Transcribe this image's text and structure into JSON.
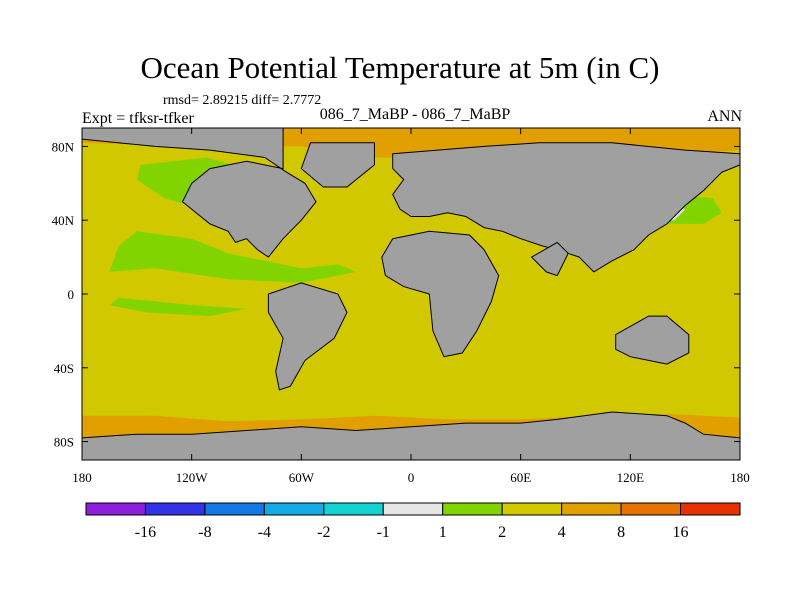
{
  "title": "Ocean Potential Temperature at 5m (in C)",
  "stats": "rmsd= 2.89215 diff= 2.7772",
  "left_label": "Expt = tfksr-tfker",
  "center_label": "086_7_MaBP - 086_7_MaBP",
  "right_label": "ANN",
  "map": {
    "lon_range": [
      -180,
      180
    ],
    "lat_range": [
      -90,
      90
    ],
    "lon_ticks": [
      {
        "value": -180,
        "label": "180"
      },
      {
        "value": -120,
        "label": "120W"
      },
      {
        "value": -60,
        "label": "60W"
      },
      {
        "value": 0,
        "label": "0"
      },
      {
        "value": 60,
        "label": "60E"
      },
      {
        "value": 120,
        "label": "120E"
      },
      {
        "value": 180,
        "label": "180"
      }
    ],
    "lat_ticks": [
      {
        "value": 80,
        "label": "80N"
      },
      {
        "value": 40,
        "label": "40N"
      },
      {
        "value": 0,
        "label": "0"
      },
      {
        "value": -40,
        "label": "40S"
      },
      {
        "value": -80,
        "label": "80S"
      }
    ],
    "background_color": "#d2c800",
    "land_color": "#a0a0a0",
    "regions": [
      {
        "name": "arctic-warm-band",
        "color": "#e19f00",
        "lonlat": [
          [
            -180,
            90
          ],
          [
            180,
            90
          ],
          [
            180,
            78
          ],
          [
            150,
            76
          ],
          [
            130,
            80
          ],
          [
            100,
            82
          ],
          [
            60,
            80
          ],
          [
            40,
            76
          ],
          [
            0,
            74
          ],
          [
            -20,
            74
          ],
          [
            -60,
            80
          ],
          [
            -120,
            80
          ],
          [
            -180,
            82
          ]
        ]
      },
      {
        "name": "southern-warm-band",
        "color": "#e19f00",
        "lonlat": [
          [
            -180,
            -66
          ],
          [
            -140,
            -66
          ],
          [
            -100,
            -69
          ],
          [
            -60,
            -68
          ],
          [
            -20,
            -66
          ],
          [
            20,
            -68
          ],
          [
            60,
            -68
          ],
          [
            100,
            -66
          ],
          [
            140,
            -65
          ],
          [
            180,
            -67
          ],
          [
            180,
            -90
          ],
          [
            -180,
            -90
          ]
        ]
      },
      {
        "name": "south-warmer-patch",
        "color": "#e67300",
        "lonlat": [
          [
            110,
            -72
          ],
          [
            120,
            -68
          ],
          [
            135,
            -68
          ],
          [
            145,
            -74
          ],
          [
            140,
            -80
          ],
          [
            120,
            -82
          ],
          [
            105,
            -78
          ]
        ]
      },
      {
        "name": "east-pacific-cool-zone",
        "color": "#82d400",
        "lonlat": [
          [
            -150,
            34
          ],
          [
            -120,
            30
          ],
          [
            -100,
            22
          ],
          [
            -80,
            18
          ],
          [
            -60,
            14
          ],
          [
            -40,
            16
          ],
          [
            -30,
            12
          ],
          [
            -60,
            6
          ],
          [
            -100,
            8
          ],
          [
            -140,
            14
          ],
          [
            -165,
            12
          ],
          [
            -160,
            26
          ]
        ]
      },
      {
        "name": "ne-pacific-cool-zone",
        "color": "#82d400",
        "lonlat": [
          [
            -148,
            70
          ],
          [
            -112,
            74
          ],
          [
            -90,
            68
          ],
          [
            -82,
            58
          ],
          [
            -80,
            40
          ],
          [
            -108,
            44
          ],
          [
            -135,
            52
          ],
          [
            -150,
            62
          ]
        ]
      },
      {
        "name": "equatorial-cool-zone",
        "color": "#82d400",
        "lonlat": [
          [
            -160,
            -2
          ],
          [
            -120,
            -6
          ],
          [
            -90,
            -8
          ],
          [
            -110,
            -12
          ],
          [
            -145,
            -10
          ],
          [
            -165,
            -6
          ]
        ]
      },
      {
        "name": "nw-pacific-cool-zone",
        "color": "#82d400",
        "lonlat": [
          [
            120,
            50
          ],
          [
            140,
            54
          ],
          [
            165,
            52
          ],
          [
            170,
            44
          ],
          [
            160,
            38
          ],
          [
            130,
            38
          ],
          [
            118,
            44
          ]
        ]
      },
      {
        "name": "nw-pacific-neutral-patch",
        "color": "#e6e6e6",
        "lonlat": [
          [
            130,
            46
          ],
          [
            140,
            50
          ],
          [
            150,
            46
          ],
          [
            144,
            40
          ],
          [
            132,
            40
          ]
        ]
      }
    ],
    "land": [
      {
        "name": "north-america-landmass",
        "lonlat": [
          [
            -180,
            90
          ],
          [
            -70,
            90
          ],
          [
            -70,
            68
          ],
          [
            -90,
            72
          ],
          [
            -110,
            68
          ],
          [
            -120,
            60
          ],
          [
            -125,
            50
          ],
          [
            -110,
            38
          ],
          [
            -100,
            34
          ],
          [
            -96,
            28
          ],
          [
            -90,
            30
          ],
          [
            -84,
            24
          ],
          [
            -78,
            20
          ],
          [
            -70,
            30
          ],
          [
            -60,
            40
          ],
          [
            -52,
            50
          ],
          [
            -58,
            60
          ],
          [
            -68,
            66
          ],
          [
            -80,
            74
          ],
          [
            -110,
            78
          ],
          [
            -140,
            80
          ],
          [
            -180,
            84
          ]
        ]
      },
      {
        "name": "greenland-landmass",
        "lonlat": [
          [
            -55,
            82
          ],
          [
            -20,
            82
          ],
          [
            -20,
            70
          ],
          [
            -35,
            58
          ],
          [
            -48,
            58
          ],
          [
            -60,
            68
          ]
        ]
      },
      {
        "name": "eurasia-landmass",
        "lonlat": [
          [
            -10,
            76
          ],
          [
            40,
            80
          ],
          [
            70,
            82
          ],
          [
            110,
            82
          ],
          [
            150,
            78
          ],
          [
            180,
            76
          ],
          [
            180,
            70
          ],
          [
            170,
            66
          ],
          [
            160,
            56
          ],
          [
            150,
            48
          ],
          [
            140,
            38
          ],
          [
            130,
            32
          ],
          [
            122,
            24
          ],
          [
            110,
            18
          ],
          [
            100,
            12
          ],
          [
            92,
            20
          ],
          [
            80,
            24
          ],
          [
            72,
            26
          ],
          [
            60,
            30
          ],
          [
            50,
            34
          ],
          [
            40,
            36
          ],
          [
            30,
            42
          ],
          [
            20,
            44
          ],
          [
            10,
            42
          ],
          [
            0,
            42
          ],
          [
            -6,
            46
          ],
          [
            -10,
            54
          ],
          [
            -4,
            62
          ],
          [
            -10,
            68
          ]
        ]
      },
      {
        "name": "africa-landmass",
        "lonlat": [
          [
            -10,
            30
          ],
          [
            10,
            34
          ],
          [
            32,
            32
          ],
          [
            40,
            24
          ],
          [
            48,
            10
          ],
          [
            44,
            -4
          ],
          [
            36,
            -20
          ],
          [
            28,
            -32
          ],
          [
            18,
            -34
          ],
          [
            12,
            -20
          ],
          [
            10,
            0
          ],
          [
            -4,
            4
          ],
          [
            -14,
            10
          ],
          [
            -16,
            20
          ]
        ]
      },
      {
        "name": "south-america-landmass",
        "lonlat": [
          [
            -78,
            0
          ],
          [
            -60,
            6
          ],
          [
            -40,
            0
          ],
          [
            -35,
            -10
          ],
          [
            -42,
            -24
          ],
          [
            -58,
            -36
          ],
          [
            -66,
            -50
          ],
          [
            -72,
            -52
          ],
          [
            -74,
            -42
          ],
          [
            -70,
            -24
          ],
          [
            -78,
            -10
          ]
        ]
      },
      {
        "name": "india-landmass",
        "lonlat": [
          [
            66,
            20
          ],
          [
            80,
            28
          ],
          [
            86,
            22
          ],
          [
            80,
            10
          ],
          [
            74,
            12
          ]
        ]
      },
      {
        "name": "australia-landmass",
        "lonlat": [
          [
            112,
            -22
          ],
          [
            130,
            -12
          ],
          [
            140,
            -12
          ],
          [
            152,
            -22
          ],
          [
            152,
            -32
          ],
          [
            140,
            -38
          ],
          [
            120,
            -34
          ],
          [
            112,
            -30
          ]
        ]
      },
      {
        "name": "antarctica-landmass",
        "lonlat": [
          [
            -180,
            -90
          ],
          [
            180,
            -90
          ],
          [
            180,
            -78
          ],
          [
            160,
            -76
          ],
          [
            150,
            -70
          ],
          [
            140,
            -66
          ],
          [
            110,
            -64
          ],
          [
            80,
            -68
          ],
          [
            60,
            -70
          ],
          [
            30,
            -70
          ],
          [
            0,
            -72
          ],
          [
            -30,
            -74
          ],
          [
            -60,
            -72
          ],
          [
            -90,
            -74
          ],
          [
            -120,
            -76
          ],
          [
            -150,
            -76
          ],
          [
            -180,
            -78
          ]
        ]
      }
    ]
  },
  "colorbar": {
    "colors": [
      "#8c1edc",
      "#3232e6",
      "#1478e6",
      "#14aae6",
      "#14d2d2",
      "#e6e6e6",
      "#82d400",
      "#d2c800",
      "#e19f00",
      "#e67300",
      "#e63200"
    ],
    "labels": [
      "-16",
      "-8",
      "-4",
      "-2",
      "-1",
      "1",
      "2",
      "4",
      "8",
      "16"
    ]
  }
}
